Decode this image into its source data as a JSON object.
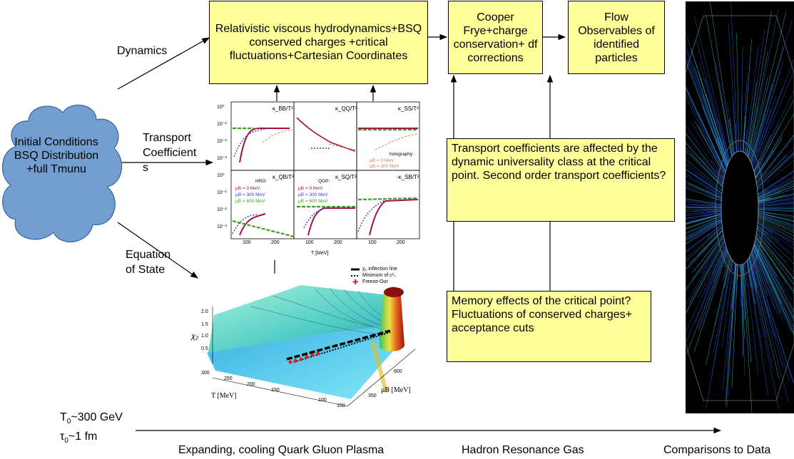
{
  "boxes": {
    "hydro": "Relativistic viscous hydrodynamics+BSQ conserved charges +critical fluctuations+Cartesian Coordinates",
    "cooper": "Cooper Frye+charge conservation+ df corrections",
    "flow": "Flow Observables of identified particles",
    "transport_note": "Transport coefficients are affected by the dynamic universality class at the critical point. Second order transport coefficients?",
    "memory_note": "Memory effects of the critical point? Fluctuations of conserved charges+ acceptance cuts"
  },
  "cloud": {
    "text": "Initial Conditions BSQ Distribution +full Tmunu"
  },
  "arrows": {
    "dynamics": "Dynamics",
    "transport_a": "Transport",
    "transport_b": "Coefficient",
    "transport_c": "s",
    "eos_a": "Equation",
    "eos_b": "of State"
  },
  "timeline": {
    "t0_main": "T",
    "t0_sub": "0",
    "t0_rest": "~300 GeV",
    "tau_main": "τ",
    "tau_sub": "0",
    "tau_rest": "~1 fm",
    "stage1": "Expanding, cooling Quark Gluon Plasma",
    "stage2": "Hadron Resonance Gas",
    "stage3": "Comparisons to Data"
  },
  "transport_plot": {
    "panels": [
      "κ_BB/T²",
      "κ_QQ/T²",
      "κ_SS/T²",
      "κ_QB/T²",
      "κ_SQ/T²",
      "-κ_SB/T²"
    ],
    "yticks": [
      "10⁰",
      "10⁻¹",
      "10⁻²",
      "10⁻³"
    ],
    "xticks": [
      "100",
      "200",
      "100",
      "200",
      "100",
      "200"
    ],
    "xlabel": "T [MeV]",
    "legend_hrg_title": "HRG:",
    "legend_qgp_title": "QGP:",
    "legend_holo_title": "holography:",
    "mu0": "μB =    0 MeV",
    "mu300": "μB = 300 MeV",
    "mu600": "μB = 600 MeV",
    "colors": {
      "mu0": "#a0143c",
      "mu300": "#3c3cc8",
      "mu600": "#3ca028",
      "holo": "#d08060"
    }
  },
  "eos_plot": {
    "legend_inflection": "χ₂ inflection line",
    "legend_min": "Minimum of c²ₛ",
    "legend_freeze": "Freeze-Out",
    "zlabel": "χ₂",
    "zticks": [
      "2.0",
      "1.5",
      "1.0",
      "0.5"
    ],
    "tlabel": "T [MeV]",
    "tticks": [
      "300",
      "250",
      "200",
      "150",
      "100"
    ],
    "mulabel": "μB [MeV]",
    "muticks": [
      "600",
      "350",
      "100"
    ]
  },
  "event_image": {
    "colors": {
      "background": "#000000",
      "tracks": "#2a6cff",
      "tracks2": "#40e0e0"
    }
  }
}
